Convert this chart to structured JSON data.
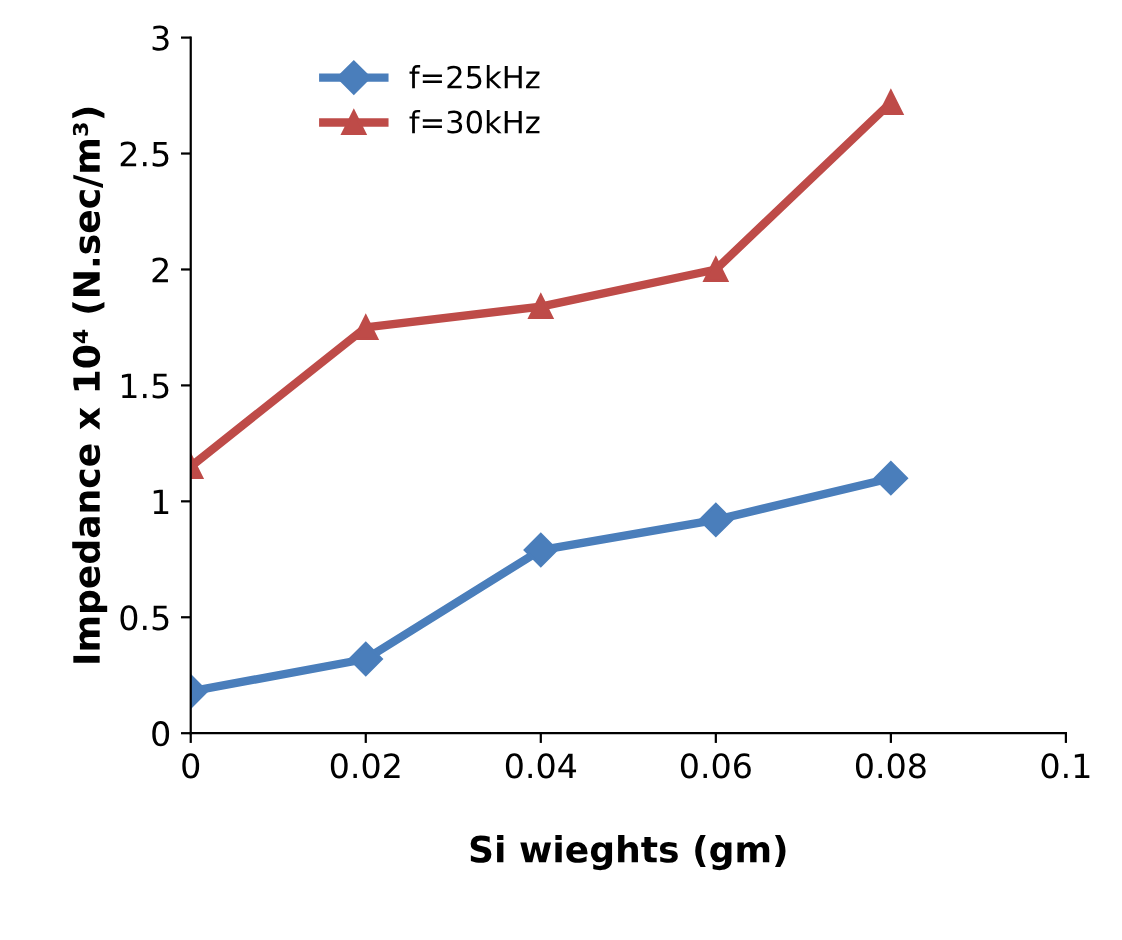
{
  "chart_data": {
    "type": "line",
    "xlabel": "Si wieghts (gm)",
    "ylabel": "Impedance x 10⁴ (N.sec/m³)",
    "x": [
      0,
      0.02,
      0.04,
      0.06,
      0.08
    ],
    "series": [
      {
        "name": "f=25kHz",
        "color": "#4a7ebb",
        "marker": "diamond",
        "values": [
          0.18,
          0.32,
          0.79,
          0.92,
          1.1
        ]
      },
      {
        "name": "f=30kHz",
        "color": "#be4b48",
        "marker": "triangle",
        "values": [
          1.15,
          1.75,
          1.84,
          2.0,
          2.72
        ]
      }
    ],
    "xlim": [
      0,
      0.1
    ],
    "xticks": [
      0,
      0.02,
      0.04,
      0.06,
      0.08,
      0.1
    ],
    "ylim": [
      0,
      3
    ],
    "yticks": [
      0,
      0.5,
      1,
      1.5,
      2,
      2.5,
      3
    ],
    "grid": false,
    "legend": "top left",
    "line_style": "solid"
  }
}
